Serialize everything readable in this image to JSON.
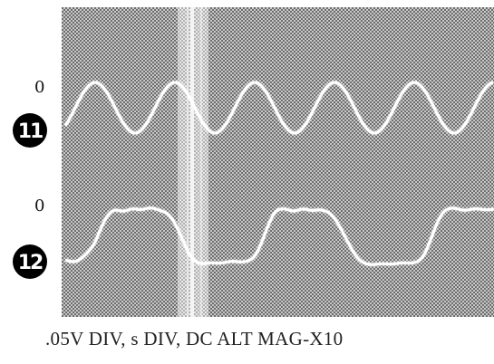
{
  "figure": {
    "zero_label_top": "0",
    "zero_label_bottom": "0",
    "badge_top": "11",
    "badge_bottom": "12",
    "caption": ".05V DIV, s DIV, DC ALT MAG-X10"
  },
  "colors": {
    "screen_background": "#9a9a9a",
    "trace": "#ffffff",
    "badge_fill": "#000000",
    "cursor_band": "#dcdcdc"
  },
  "traces": [
    {
      "name": "trace-11",
      "shape": "sine"
    },
    {
      "name": "trace-12",
      "shape": "trapezoid-square"
    }
  ]
}
